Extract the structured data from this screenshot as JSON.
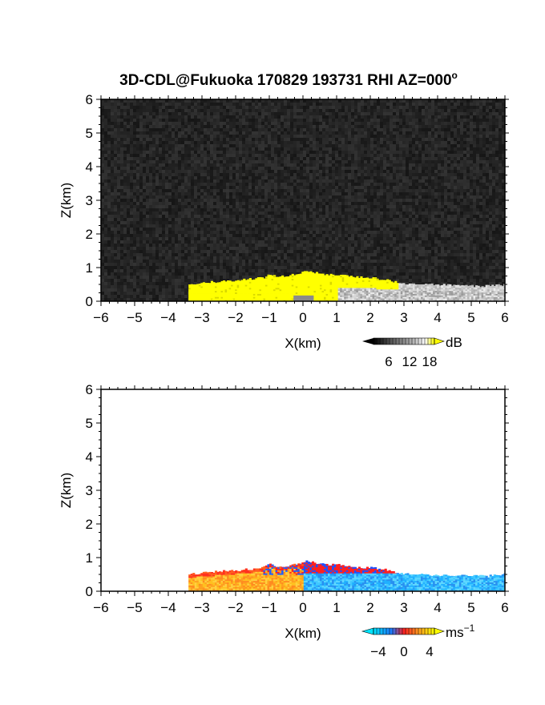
{
  "title": "3D-CDL@Fukuoka 170829 193731 RHI AZ=000",
  "title_suffix": "o",
  "chart_data": [
    {
      "type": "heatmap",
      "name": "reflectivity",
      "xlabel": "X(km)",
      "ylabel": "Z(km)",
      "xlim": [
        -6,
        6
      ],
      "ylim": [
        0,
        6
      ],
      "xticks": [
        -6,
        -5,
        -4,
        -3,
        -2,
        -1,
        0,
        1,
        2,
        3,
        4,
        5,
        6
      ],
      "yticks": [
        0,
        1,
        2,
        3,
        4,
        5,
        6
      ],
      "background": "noise",
      "echo_profile": {
        "x": [
          -3.4,
          -3.0,
          -2.5,
          -2.0,
          -1.5,
          -1.2,
          -1.0,
          -0.8,
          -0.5,
          -0.2,
          0.0,
          0.3,
          0.6,
          1.0,
          1.5,
          2.0,
          2.5,
          2.8,
          3.0,
          3.5,
          4.0,
          4.5,
          5.0,
          5.5,
          6.0
        ],
        "top": [
          0.5,
          0.55,
          0.58,
          0.62,
          0.66,
          0.7,
          0.8,
          0.72,
          0.75,
          0.8,
          0.9,
          0.85,
          0.8,
          0.78,
          0.72,
          0.7,
          0.62,
          0.55,
          0.5,
          0.5,
          0.48,
          0.48,
          0.45,
          0.45,
          0.5
        ]
      },
      "colorbar": {
        "unit": "dB",
        "ticks": [
          "6",
          "12",
          "18"
        ],
        "colors": [
          "#000000",
          "#5a5a5a",
          "#b4b4b4",
          "#ffffff",
          "#ffff00"
        ]
      }
    },
    {
      "type": "heatmap",
      "name": "doppler_velocity",
      "xlabel": "X(km)",
      "ylabel": "Z(km)",
      "xlim": [
        -6,
        6
      ],
      "ylim": [
        0,
        6
      ],
      "xticks": [
        -6,
        -5,
        -4,
        -3,
        -2,
        -1,
        0,
        1,
        2,
        3,
        4,
        5,
        6
      ],
      "yticks": [
        0,
        1,
        2,
        3,
        4,
        5,
        6
      ],
      "background": "none",
      "echo_profile": {
        "x": [
          -3.4,
          -3.0,
          -2.5,
          -2.0,
          -1.5,
          -1.2,
          -1.0,
          -0.8,
          -0.5,
          -0.2,
          0.0,
          0.3,
          0.6,
          1.0,
          1.5,
          2.0,
          2.5,
          2.8,
          3.0,
          3.5,
          4.0,
          4.5,
          5.0,
          5.5,
          6.0
        ],
        "top": [
          0.5,
          0.55,
          0.58,
          0.62,
          0.66,
          0.7,
          0.8,
          0.72,
          0.75,
          0.8,
          0.9,
          0.85,
          0.8,
          0.78,
          0.72,
          0.7,
          0.62,
          0.55,
          0.5,
          0.5,
          0.48,
          0.48,
          0.45,
          0.45,
          0.5
        ]
      },
      "colorbar": {
        "unit": "ms",
        "unit_exponent": "−1",
        "ticks": [
          "−4",
          "0",
          "4"
        ],
        "colors": [
          "#00e5ff",
          "#1e78ff",
          "#ff2020",
          "#ffa020",
          "#ffff00"
        ]
      }
    }
  ]
}
